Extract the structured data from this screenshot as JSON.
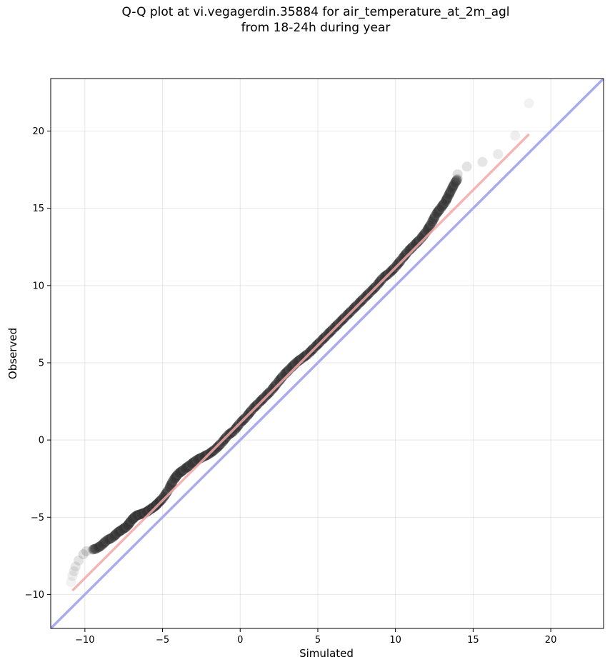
{
  "chart_data": {
    "type": "scatter",
    "title": [
      "Q-Q plot at vi.vegagerdin.35884 for air_temperature_at_2m_agl",
      "from 18-24h during year"
    ],
    "xlabel": "Simulated",
    "ylabel": "Observed",
    "xlim": [
      -12.2,
      23.4
    ],
    "ylim": [
      -12.2,
      23.4
    ],
    "xticks": [
      -10,
      -5,
      0,
      5,
      10,
      15,
      20
    ],
    "yticks": [
      -10,
      -5,
      0,
      5,
      10,
      15,
      20
    ],
    "grid": true,
    "reference_line": {
      "x": [
        -12.2,
        23.4
      ],
      "y": [
        -12.2,
        23.4
      ],
      "color": "#aaaaf0"
    },
    "fit_line": {
      "x": [
        -10.8,
        18.6
      ],
      "y": [
        -9.75,
        19.8
      ],
      "color": "#f4a8a8"
    },
    "quantile_points": {
      "x": [
        -10.9,
        -10.8,
        -10.7,
        -10.6,
        -10.4,
        -10.1,
        -9.9,
        -9.5,
        -9.2,
        -8.9,
        -8.6,
        -8.2,
        -7.9,
        -7.6,
        -7.3,
        -7.0,
        -6.7,
        -6.4,
        -6.1,
        -5.8,
        -5.5,
        -5.3,
        -5.0,
        -4.6,
        -4.3,
        -4.0,
        -3.6,
        -3.2,
        -2.8,
        -2.4,
        -2.0,
        -1.6,
        -1.2,
        -0.8,
        -0.4,
        0.0,
        0.4,
        0.8,
        1.2,
        1.6,
        2.0,
        2.4,
        2.8,
        3.2,
        3.6,
        4.0,
        4.4,
        4.8,
        5.2,
        5.6,
        6.0,
        6.4,
        6.8,
        7.2,
        7.6,
        8.0,
        8.4,
        8.8,
        9.2,
        9.6,
        10.0,
        10.4,
        10.8,
        11.2,
        11.6,
        12.0,
        12.3,
        12.6,
        12.9,
        13.2,
        13.4,
        13.6,
        13.8,
        14.0,
        14.0,
        14.6,
        15.6,
        16.6,
        17.7,
        18.6
      ],
      "y": [
        -9.2,
        -8.8,
        -8.5,
        -8.2,
        -7.8,
        -7.4,
        -7.2,
        -7.1,
        -7.0,
        -6.8,
        -6.5,
        -6.3,
        -6.0,
        -5.8,
        -5.6,
        -5.2,
        -4.9,
        -4.8,
        -4.7,
        -4.5,
        -4.3,
        -4.1,
        -3.8,
        -3.2,
        -2.6,
        -2.2,
        -1.9,
        -1.6,
        -1.3,
        -1.1,
        -0.9,
        -0.6,
        -0.2,
        0.3,
        0.6,
        1.1,
        1.5,
        2.0,
        2.4,
        2.8,
        3.2,
        3.7,
        4.2,
        4.6,
        5.0,
        5.3,
        5.6,
        6.0,
        6.4,
        6.8,
        7.2,
        7.6,
        8.0,
        8.4,
        8.8,
        9.2,
        9.6,
        10.0,
        10.5,
        10.8,
        11.2,
        11.7,
        12.2,
        12.6,
        13.0,
        13.5,
        14.0,
        14.6,
        15.0,
        15.4,
        15.8,
        16.2,
        16.6,
        16.9,
        17.2,
        17.7,
        18.0,
        18.5,
        19.7,
        21.8
      ]
    }
  }
}
